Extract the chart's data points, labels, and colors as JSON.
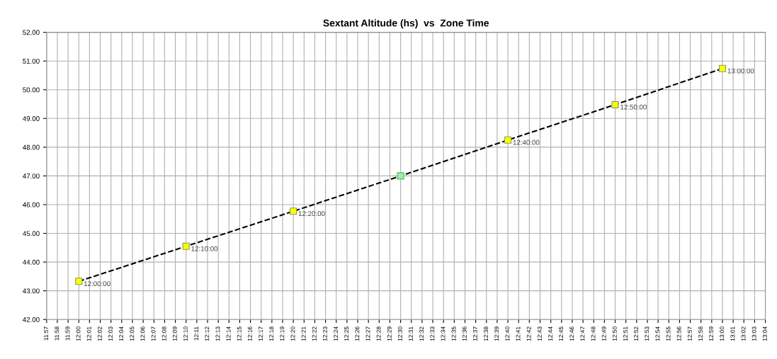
{
  "chart_data": {
    "type": "line",
    "title": "Sextant Altitude (hs)  vs  Zone Time",
    "series": [
      {
        "color": "#000000",
        "colors": [
          "#ffff00",
          "#ffff00",
          "#ffff00",
          "#80ffb0",
          "#ffff00",
          "#ffff00",
          "#ffff00"
        ],
        "x": [
          12.0,
          12.166667,
          12.333333,
          12.5,
          12.666667,
          12.833333,
          13.0
        ],
        "values": [
          43.33,
          44.55,
          45.77,
          47.0,
          48.25,
          49.48,
          50.74
        ]
      }
    ],
    "annotations": [
      {
        "text": "12:00:00",
        "x": 12.0,
        "y": 43.33
      },
      {
        "text": "12:10:00",
        "x": 12.166667,
        "y": 44.55
      },
      {
        "text": "12:20:00",
        "x": 12.333333,
        "y": 45.77
      },
      {
        "text": "12:40:00",
        "x": 12.666667,
        "y": 48.25
      },
      {
        "text": "12:50:00",
        "x": 12.833333,
        "y": 49.48
      },
      {
        "text": "13:00:00",
        "x": 13.0,
        "y": 50.74
      }
    ],
    "xlim": [
      11.95,
      13.066667
    ],
    "xticks": [
      {
        "value": 11.95,
        "label": "11:57"
      },
      {
        "value": 11.966667,
        "label": "11:58"
      },
      {
        "value": 11.983333,
        "label": "11:59"
      },
      {
        "value": 12.0,
        "label": "12:00"
      },
      {
        "value": 12.016667,
        "label": "12:01"
      },
      {
        "value": 12.033333,
        "label": "12:02"
      },
      {
        "value": 12.05,
        "label": "12:03"
      },
      {
        "value": 12.066667,
        "label": "12:04"
      },
      {
        "value": 12.083333,
        "label": "12:05"
      },
      {
        "value": 12.1,
        "label": "12:06"
      },
      {
        "value": 12.116667,
        "label": "12:07"
      },
      {
        "value": 12.133333,
        "label": "12:08"
      },
      {
        "value": 12.15,
        "label": "12:09"
      },
      {
        "value": 12.166667,
        "label": "12:10"
      },
      {
        "value": 12.183333,
        "label": "12:11"
      },
      {
        "value": 12.2,
        "label": "12:12"
      },
      {
        "value": 12.216667,
        "label": "12:13"
      },
      {
        "value": 12.233333,
        "label": "12:14"
      },
      {
        "value": 12.25,
        "label": "12:15"
      },
      {
        "value": 12.266667,
        "label": "12:16"
      },
      {
        "value": 12.283333,
        "label": "12:17"
      },
      {
        "value": 12.3,
        "label": "12:18"
      },
      {
        "value": 12.316667,
        "label": "12:19"
      },
      {
        "value": 12.333333,
        "label": "12:20"
      },
      {
        "value": 12.35,
        "label": "12:21"
      },
      {
        "value": 12.366667,
        "label": "12:22"
      },
      {
        "value": 12.383333,
        "label": "12:23"
      },
      {
        "value": 12.4,
        "label": "12:24"
      },
      {
        "value": 12.416667,
        "label": "12:25"
      },
      {
        "value": 12.433333,
        "label": "12:26"
      },
      {
        "value": 12.45,
        "label": "12:27"
      },
      {
        "value": 12.466667,
        "label": "12:28"
      },
      {
        "value": 12.483333,
        "label": "12:29"
      },
      {
        "value": 12.5,
        "label": "12:30"
      },
      {
        "value": 12.516667,
        "label": "12:31"
      },
      {
        "value": 12.533333,
        "label": "12:32"
      },
      {
        "value": 12.55,
        "label": "12:33"
      },
      {
        "value": 12.566667,
        "label": "12:34"
      },
      {
        "value": 12.583333,
        "label": "12:35"
      },
      {
        "value": 12.6,
        "label": "12:36"
      },
      {
        "value": 12.616667,
        "label": "12:37"
      },
      {
        "value": 12.633333,
        "label": "12:38"
      },
      {
        "value": 12.65,
        "label": "12:39"
      },
      {
        "value": 12.666667,
        "label": "12:40"
      },
      {
        "value": 12.683333,
        "label": "12:41"
      },
      {
        "value": 12.7,
        "label": "12:42"
      },
      {
        "value": 12.716667,
        "label": "12:43"
      },
      {
        "value": 12.733333,
        "label": "12:44"
      },
      {
        "value": 12.75,
        "label": "12:45"
      },
      {
        "value": 12.766667,
        "label": "12:46"
      },
      {
        "value": 12.783333,
        "label": "12:47"
      },
      {
        "value": 12.8,
        "label": "12:48"
      },
      {
        "value": 12.816667,
        "label": "12:49"
      },
      {
        "value": 12.833333,
        "label": "12:50"
      },
      {
        "value": 12.85,
        "label": "12:51"
      },
      {
        "value": 12.866667,
        "label": "12:52"
      },
      {
        "value": 12.883333,
        "label": "12:53"
      },
      {
        "value": 12.9,
        "label": "12:54"
      },
      {
        "value": 12.916667,
        "label": "12:55"
      },
      {
        "value": 12.933333,
        "label": "12:56"
      },
      {
        "value": 12.95,
        "label": "12:57"
      },
      {
        "value": 12.966667,
        "label": "12:58"
      },
      {
        "value": 12.983333,
        "label": "12:59"
      },
      {
        "value": 13.0,
        "label": "13:00"
      },
      {
        "value": 13.016667,
        "label": "13:01"
      },
      {
        "value": 13.033333,
        "label": "13:02"
      },
      {
        "value": 13.05,
        "label": "13:03"
      },
      {
        "value": 13.066667,
        "label": "13:04"
      }
    ],
    "ylim": [
      42,
      52
    ],
    "yticks": [
      {
        "value": 42,
        "label": "42.00"
      },
      {
        "value": 43,
        "label": "43.00"
      },
      {
        "value": 44,
        "label": "44.00"
      },
      {
        "value": 45,
        "label": "45.00"
      },
      {
        "value": 46,
        "label": "46.00"
      },
      {
        "value": 47,
        "label": "47.00"
      },
      {
        "value": 48,
        "label": "48.00"
      },
      {
        "value": 49,
        "label": "49.00"
      },
      {
        "value": 50,
        "label": "50.00"
      },
      {
        "value": 51,
        "label": "51.00"
      },
      {
        "value": 52,
        "label": "52.00"
      }
    ],
    "grid": true,
    "marker": "square",
    "line_style": "dashed"
  }
}
